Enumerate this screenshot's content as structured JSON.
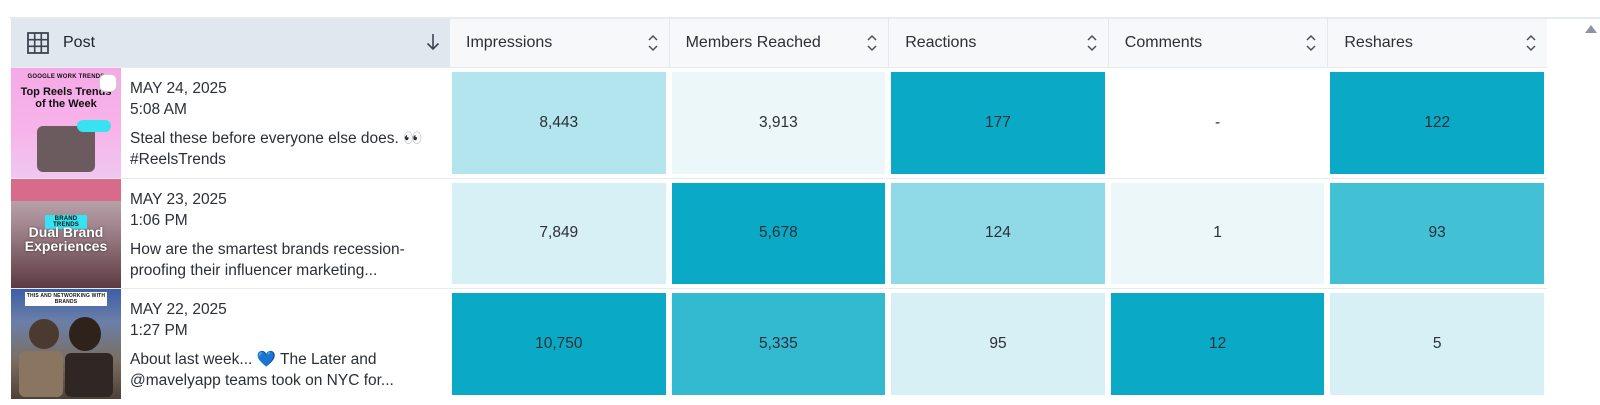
{
  "header": {
    "post_label": "Post",
    "columns": [
      "Impressions",
      "Members Reached",
      "Reactions",
      "Comments",
      "Reshares"
    ]
  },
  "colors": {
    "level_0": "#ffffff",
    "level_1": "#ebf7f9",
    "level_2": "#d7f0f5",
    "level_3": "#b2e5ee",
    "level_4": "#90d9e6",
    "level_5": "#43c1d4",
    "level_6": "#33b9d0",
    "level_7": "#0aaac6"
  },
  "rows": [
    {
      "date": "MAY 24, 2025",
      "time": "5:08 AM",
      "caption": "Steal these before everyone else does. 👀 #ReelsTrends",
      "thumb_small": "GOOGLE WORK TRENDS",
      "thumb_title": "Top Reels Trends of the Week",
      "metrics": [
        "8,443",
        "3,913",
        "177",
        "-",
        "122"
      ],
      "shades": [
        "level_3",
        "level_1",
        "level_7",
        "level_0",
        "level_7"
      ]
    },
    {
      "date": "MAY 23, 2025",
      "time": "1:06 PM",
      "caption": "How are the smartest brands recession-proofing their influencer marketing...",
      "thumb_small": "BRAND TRENDS",
      "thumb_title": "Dual Brand Experiences",
      "metrics": [
        "7,849",
        "5,678",
        "124",
        "1",
        "93"
      ],
      "shades": [
        "level_2",
        "level_7",
        "level_4",
        "level_1",
        "level_5"
      ]
    },
    {
      "date": "MAY 22, 2025",
      "time": "1:27 PM",
      "caption": "About last week... 💙 The Later and @mavelyapp teams took on NYC for...",
      "thumb_small": "THIS AND NETWORKING WITH BRANDS",
      "thumb_title": "",
      "metrics": [
        "10,750",
        "5,335",
        "95",
        "12",
        "5"
      ],
      "shades": [
        "level_7",
        "level_6",
        "level_2",
        "level_7",
        "level_2"
      ]
    }
  ]
}
